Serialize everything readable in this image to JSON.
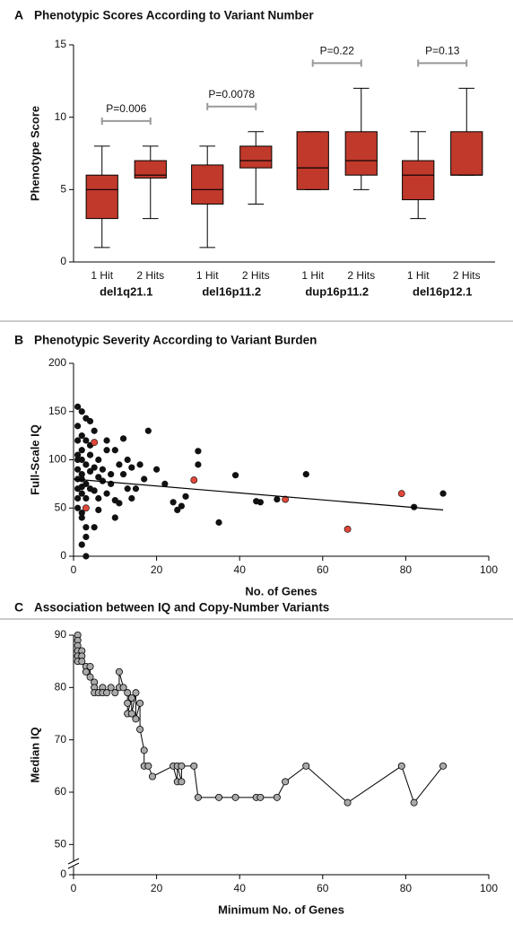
{
  "chart_data": [
    {
      "type": "box",
      "label": "A",
      "title": "Phenotypic Scores According to Variant Number",
      "ylabel": "Phenotype Score",
      "ylim": [
        0,
        15
      ],
      "yticks": [
        0,
        5,
        10,
        15
      ],
      "color": "#c0392b",
      "groups": [
        "del1q21.1",
        "del16p11.2",
        "dup16p11.2",
        "del16p12.1"
      ],
      "categories": [
        "1 Hit",
        "2 Hits",
        "1 Hit",
        "2 Hits",
        "1 Hit",
        "2 Hits",
        "1 Hit",
        "2 Hits"
      ],
      "boxes": [
        {
          "whislo": 1,
          "q1": 3,
          "med": 5,
          "q3": 6,
          "whishi": 8
        },
        {
          "whislo": 3,
          "q1": 5.8,
          "med": 6,
          "q3": 7,
          "whishi": 8
        },
        {
          "whislo": 1,
          "q1": 4,
          "med": 5,
          "q3": 6.7,
          "whishi": 8
        },
        {
          "whislo": 4,
          "q1": 6.5,
          "med": 7,
          "q3": 8,
          "whishi": 9
        },
        {
          "whislo": 5,
          "q1": 5,
          "med": 6.5,
          "q3": 9,
          "whishi": 9
        },
        {
          "whislo": 5,
          "q1": 6,
          "med": 7,
          "q3": 9,
          "whishi": 12
        },
        {
          "whislo": 3,
          "q1": 4.3,
          "med": 6,
          "q3": 7,
          "whishi": 9
        },
        {
          "whislo": 6,
          "q1": 6,
          "med": 6,
          "q3": 9,
          "whishi": 12
        }
      ],
      "annotations": [
        "P=0.006",
        "P=0.0078",
        "P=0.22",
        "P=0.13"
      ]
    },
    {
      "type": "scatter",
      "label": "B",
      "title": "Phenotypic Severity According to Variant Burden",
      "ylabel": "Full-Scale IQ",
      "xlabel": "No. of Genes",
      "xlim": [
        0,
        100
      ],
      "xticks": [
        0,
        20,
        40,
        60,
        80,
        100
      ],
      "ylim": [
        0,
        200
      ],
      "yticks": [
        0,
        50,
        100,
        150,
        200
      ],
      "groups": [
        {
          "color": "#111111",
          "x": [
            1,
            2,
            3,
            4,
            8,
            12,
            18,
            25,
            26,
            30,
            30,
            35,
            39,
            44,
            45,
            49,
            56,
            82,
            89,
            3,
            2,
            5,
            10,
            15,
            20,
            22,
            10,
            6,
            1,
            2,
            4,
            7,
            9,
            12,
            14,
            16,
            3,
            1,
            2,
            6,
            8,
            11,
            13,
            5,
            4,
            1,
            2,
            3,
            1,
            2,
            1,
            2,
            3,
            4,
            5,
            1,
            2,
            3,
            6,
            7,
            1,
            2,
            3,
            4,
            1,
            2,
            3,
            1,
            2,
            5,
            9,
            11,
            13,
            17,
            6,
            8,
            10,
            14,
            24,
            27
          ],
          "y": [
            155,
            150,
            143,
            140,
            120,
            122,
            130,
            48,
            52,
            95,
            109,
            35,
            84,
            57,
            56,
            59,
            85,
            51,
            65,
            0,
            12,
            30,
            40,
            70,
            90,
            75,
            110,
            60,
            100,
            80,
            70,
            90,
            75,
            85,
            60,
            95,
            120,
            60,
            40,
            100,
            65,
            55,
            100,
            130,
            105,
            80,
            110,
            95,
            120,
            65,
            90,
            85,
            75,
            88,
            92,
            70,
            100,
            60,
            82,
            78,
            50,
            45,
            30,
            115,
            135,
            125,
            20,
            105,
            72,
            68,
            85,
            95,
            70,
            80,
            48,
            110,
            58,
            92,
            56,
            62
          ]
        },
        {
          "color": "#e0483a",
          "x": [
            3,
            5,
            29,
            51,
            66,
            79
          ],
          "y": [
            50,
            118,
            79,
            59,
            28,
            65
          ]
        }
      ],
      "trendline": {
        "x": [
          0,
          89
        ],
        "y": [
          80,
          48
        ]
      }
    },
    {
      "type": "line",
      "label": "C",
      "title": "Association between IQ and Copy-Number Variants",
      "ylabel": "Median IQ",
      "xlabel": "Minimum No. of Genes",
      "xlim": [
        0,
        100
      ],
      "xticks": [
        0,
        20,
        40,
        60,
        80,
        100
      ],
      "ylim": [
        48,
        90
      ],
      "yticks": [
        0,
        50,
        60,
        70,
        80,
        90
      ],
      "y_break": true,
      "color": "#aaaaaa",
      "x": [
        1,
        1,
        1,
        1,
        1,
        1,
        2,
        2,
        2,
        3,
        3,
        4,
        4,
        5,
        5,
        5,
        6,
        7,
        7,
        8,
        9,
        10,
        11,
        11,
        12,
        13,
        13,
        13,
        14,
        14,
        15,
        15,
        16,
        16,
        17,
        17,
        18,
        19,
        24,
        25,
        25,
        26,
        26,
        29,
        30,
        35,
        39,
        44,
        45,
        49,
        51,
        56,
        66,
        79,
        82,
        89
      ],
      "y": [
        90,
        89,
        88,
        87,
        86,
        85,
        87,
        86,
        85,
        84,
        83,
        84,
        82,
        81,
        80,
        79,
        79,
        80,
        79,
        79,
        80,
        79,
        80,
        83,
        80,
        79,
        77,
        75,
        78,
        75,
        79,
        74,
        77,
        72,
        68,
        65,
        65,
        63,
        65,
        62,
        65,
        62,
        65,
        65,
        59,
        59,
        59,
        59,
        59,
        59,
        62,
        65,
        58,
        65,
        58,
        65
      ]
    }
  ]
}
